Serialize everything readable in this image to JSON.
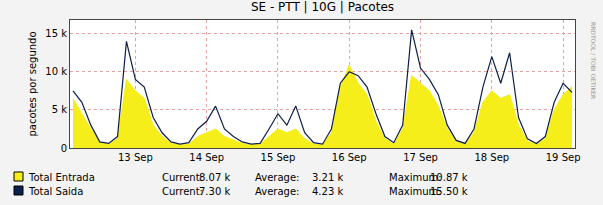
{
  "chart_data": {
    "type": "line",
    "title": "SE - PTT | 10G | Pacotes",
    "y_label": "pacotes por segundo",
    "annotations": [
      "RRDTOOL / TOBI OETIKER"
    ],
    "stat_labels": [
      "Current:",
      "Average:",
      "Maximum:"
    ],
    "x": [
      12.625,
      12.75,
      12.875,
      13,
      13.125,
      13.25,
      13.375,
      13.5,
      13.625,
      13.75,
      13.875,
      14,
      14.125,
      14.25,
      14.375,
      14.5,
      14.625,
      14.75,
      14.875,
      15,
      15.125,
      15.25,
      15.375,
      15.5,
      15.625,
      15.75,
      15.875,
      16,
      16.125,
      16.25,
      16.375,
      16.5,
      16.625,
      16.75,
      16.875,
      17,
      17.125,
      17.25,
      17.375,
      17.5,
      17.625,
      17.75,
      17.875,
      18,
      18.125,
      18.25,
      18.375,
      18.5,
      18.625,
      18.75,
      18.875,
      19,
      19.125,
      19.25,
      19.375,
      19.5,
      19.625
    ],
    "series": [
      {
        "name": "Total Entrada",
        "type": "area",
        "color": "#f5ee1a",
        "stats": [
          "8.07 k",
          "3.21 k",
          "10.87 k"
        ],
        "values": [
          6500,
          4500,
          2500,
          700,
          500,
          1200,
          9000,
          7500,
          6500,
          3000,
          1500,
          600,
          400,
          500,
          1500,
          2000,
          2500,
          1500,
          1000,
          600,
          400,
          500,
          1500,
          2500,
          2000,
          2500,
          1200,
          500,
          400,
          2000,
          8000,
          10870,
          8500,
          7000,
          3500,
          1200,
          500,
          2500,
          9500,
          8500,
          7500,
          5500,
          2500,
          800,
          500,
          2000,
          6000,
          7500,
          6500,
          7000,
          3000,
          900,
          500,
          1200,
          5000,
          7000,
          8070
        ]
      },
      {
        "name": "Total Saida",
        "type": "line",
        "color": "#0d1f4a",
        "stats": [
          "7.30 k",
          "4.23 k",
          "15.50 k"
        ],
        "values": [
          7500,
          6000,
          3000,
          800,
          600,
          1500,
          14000,
          9000,
          8000,
          4000,
          2000,
          800,
          500,
          700,
          2500,
          3500,
          5500,
          2500,
          1500,
          800,
          500,
          600,
          2500,
          4500,
          3000,
          5500,
          2000,
          700,
          500,
          2500,
          8500,
          10000,
          9500,
          8000,
          4500,
          1500,
          700,
          3000,
          15500,
          10500,
          9000,
          7000,
          3000,
          1000,
          600,
          2500,
          8000,
          12000,
          8500,
          12500,
          4000,
          1200,
          600,
          1500,
          6000,
          8500,
          7300
        ]
      }
    ],
    "xlim": [
      12.583,
      19.667
    ],
    "xticks": [
      {
        "value": 13.5,
        "label": "13 Sep"
      },
      {
        "value": 14.5,
        "label": "14 Sep"
      },
      {
        "value": 15.5,
        "label": "15 Sep"
      },
      {
        "value": 16.5,
        "label": "16 Sep"
      },
      {
        "value": 17.5,
        "label": "17 Sep"
      },
      {
        "value": 18.5,
        "label": "18 Sep"
      },
      {
        "value": 19.5,
        "label": "19 Sep"
      }
    ],
    "ylim": [
      0,
      16800
    ],
    "yticks": [
      0,
      {
        "value": 5000,
        "label": "5 k"
      },
      {
        "value": 10000,
        "label": "10 k"
      },
      {
        "value": 15000,
        "label": "15 k"
      }
    ],
    "grid": true
  }
}
